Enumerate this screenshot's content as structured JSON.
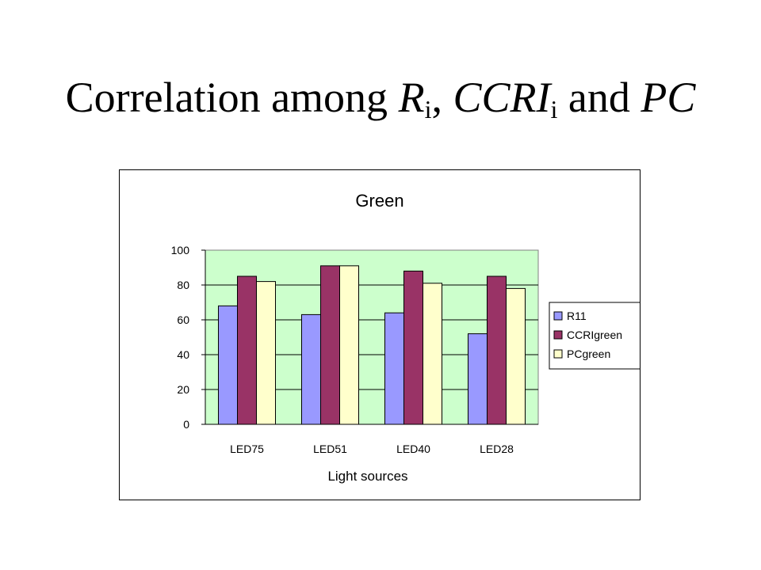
{
  "slide": {
    "title_parts": [
      {
        "text": "Correlation among ",
        "style": "normal"
      },
      {
        "text": "R",
        "style": "italic"
      },
      {
        "text": "i",
        "style": "sub"
      },
      {
        "text": ", ",
        "style": "normal"
      },
      {
        "text": "CCRI",
        "style": "italic"
      },
      {
        "text": "i",
        "style": "sub"
      },
      {
        "text": " and ",
        "style": "normal"
      },
      {
        "text": "PC",
        "style": "italic"
      }
    ]
  },
  "chart_data": {
    "type": "bar",
    "title": "Green",
    "xlabel": "Light sources",
    "ylabel": "",
    "categories": [
      "LED75",
      "LED51",
      "LED40",
      "LED28"
    ],
    "series": [
      {
        "name": "R11",
        "values": [
          68,
          63,
          64,
          52
        ],
        "color": "#9999ff"
      },
      {
        "name": "CCRIgreen",
        "values": [
          85,
          91,
          88,
          85
        ],
        "color": "#993366"
      },
      {
        "name": "PCgreen",
        "values": [
          82,
          91,
          81,
          78
        ],
        "color": "#ffffcc"
      }
    ],
    "ylim": [
      0,
      100
    ],
    "yticks": [
      0,
      20,
      40,
      60,
      80,
      100
    ],
    "grid": true,
    "plot_background": "#ccffcc",
    "legend_position": "right"
  }
}
